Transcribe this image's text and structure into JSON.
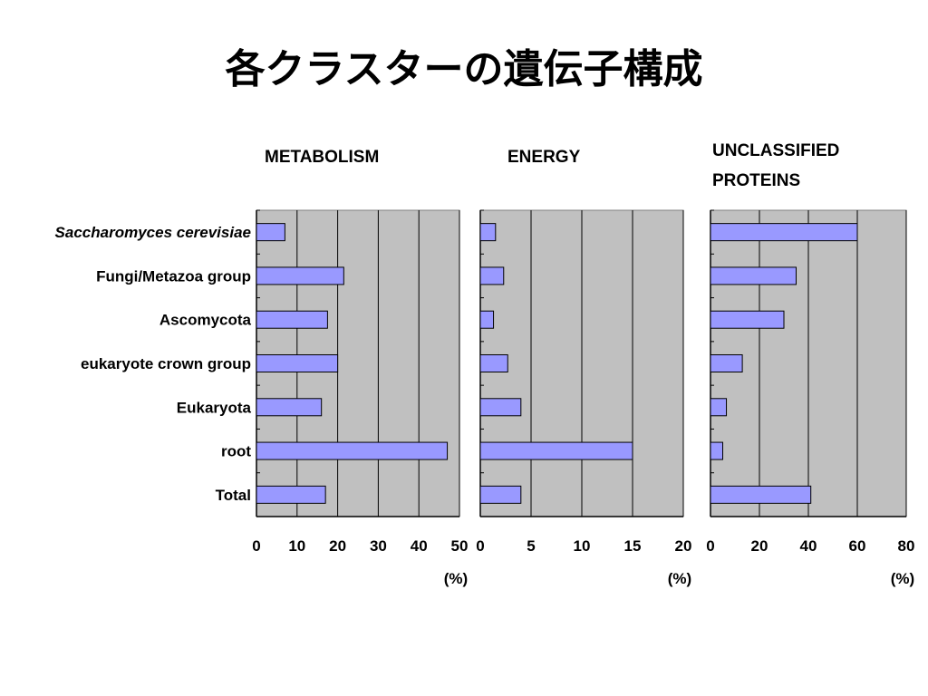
{
  "title": "各クラスターの遺伝子構成",
  "chart_data": {
    "type": "bar",
    "orientation": "horizontal",
    "categories": [
      "Saccharomyces cerevisiae",
      "Fungi/Metazoa group",
      "Ascomycota",
      "eukaryote crown group",
      "Eukaryota",
      "root",
      "Total"
    ],
    "italic_categories": [
      "Saccharomyces cerevisiae"
    ],
    "bar_color": "#9999ff",
    "plot_background": "#c0c0c0",
    "grid": true,
    "panels": [
      {
        "title": [
          "METABOLISM"
        ],
        "xlim": [
          0,
          50
        ],
        "ticks": [
          0,
          10,
          20,
          30,
          40,
          50
        ],
        "unit": "(%)",
        "values": [
          7,
          21.5,
          17.5,
          20,
          16,
          47,
          17
        ]
      },
      {
        "title": [
          "ENERGY"
        ],
        "xlim": [
          0,
          20
        ],
        "ticks": [
          0,
          5,
          10,
          15,
          20
        ],
        "unit": "(%)",
        "values": [
          1.5,
          2.3,
          1.3,
          2.7,
          4,
          15,
          4
        ]
      },
      {
        "title": [
          "UNCLASSIFIED",
          "PROTEINS"
        ],
        "xlim": [
          0,
          80
        ],
        "ticks": [
          0,
          20,
          40,
          60,
          80
        ],
        "unit": "(%)",
        "values": [
          60,
          35,
          30,
          13,
          6.5,
          5,
          41
        ]
      }
    ]
  }
}
